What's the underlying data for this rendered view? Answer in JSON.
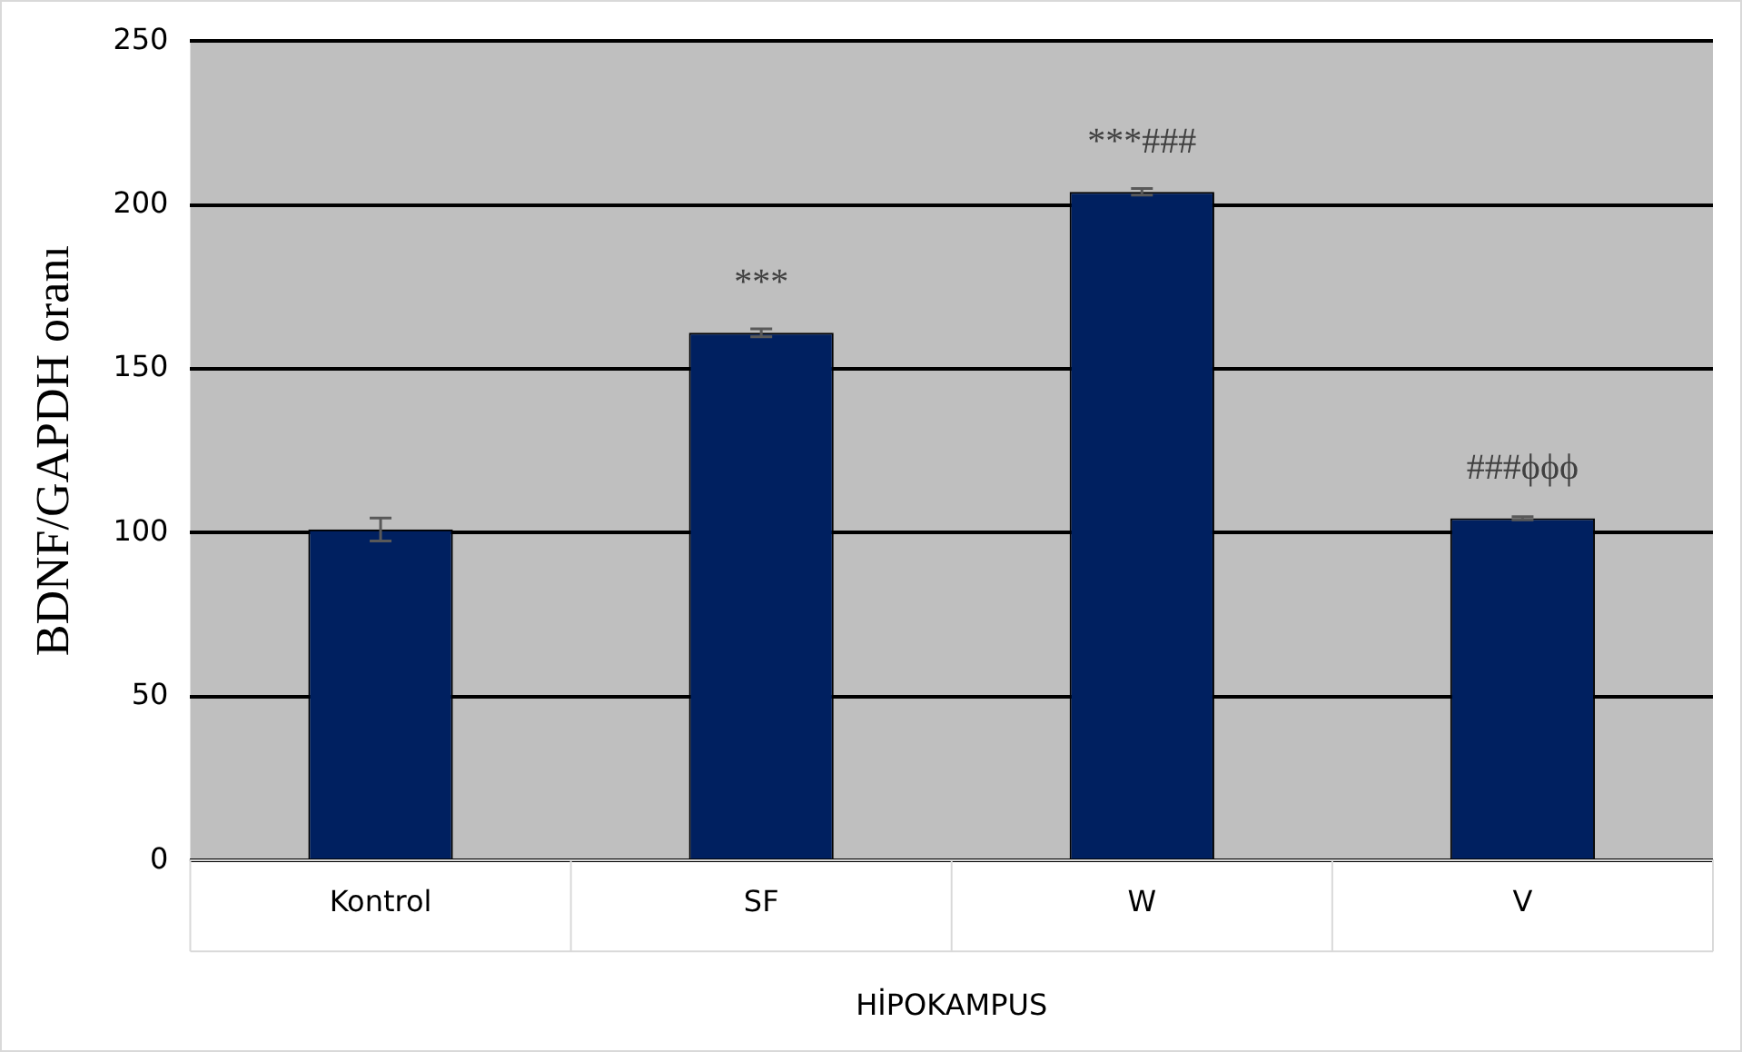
{
  "chart_data": {
    "type": "bar",
    "ylabel": "BDNF/GAPDH oranı",
    "xlabel": "HİPOKAMPUS",
    "categories": [
      "Kontrol",
      "SF",
      "W",
      "V"
    ],
    "values": [
      101,
      161,
      204,
      104.4
    ],
    "errors": [
      3.5,
      1.2,
      1,
      0.5
    ],
    "color": "#002060",
    "ylim": [
      0,
      250
    ],
    "yticks": [
      0,
      50,
      100,
      150,
      200,
      250
    ],
    "grid": "y",
    "legend": false,
    "annotations": [
      {
        "text": "***",
        "x": "SF",
        "y": 161
      },
      {
        "text": "***###",
        "x": "W",
        "y": 204
      },
      {
        "text": "###ϕϕϕ",
        "x": "V",
        "y": 104.4
      }
    ]
  }
}
